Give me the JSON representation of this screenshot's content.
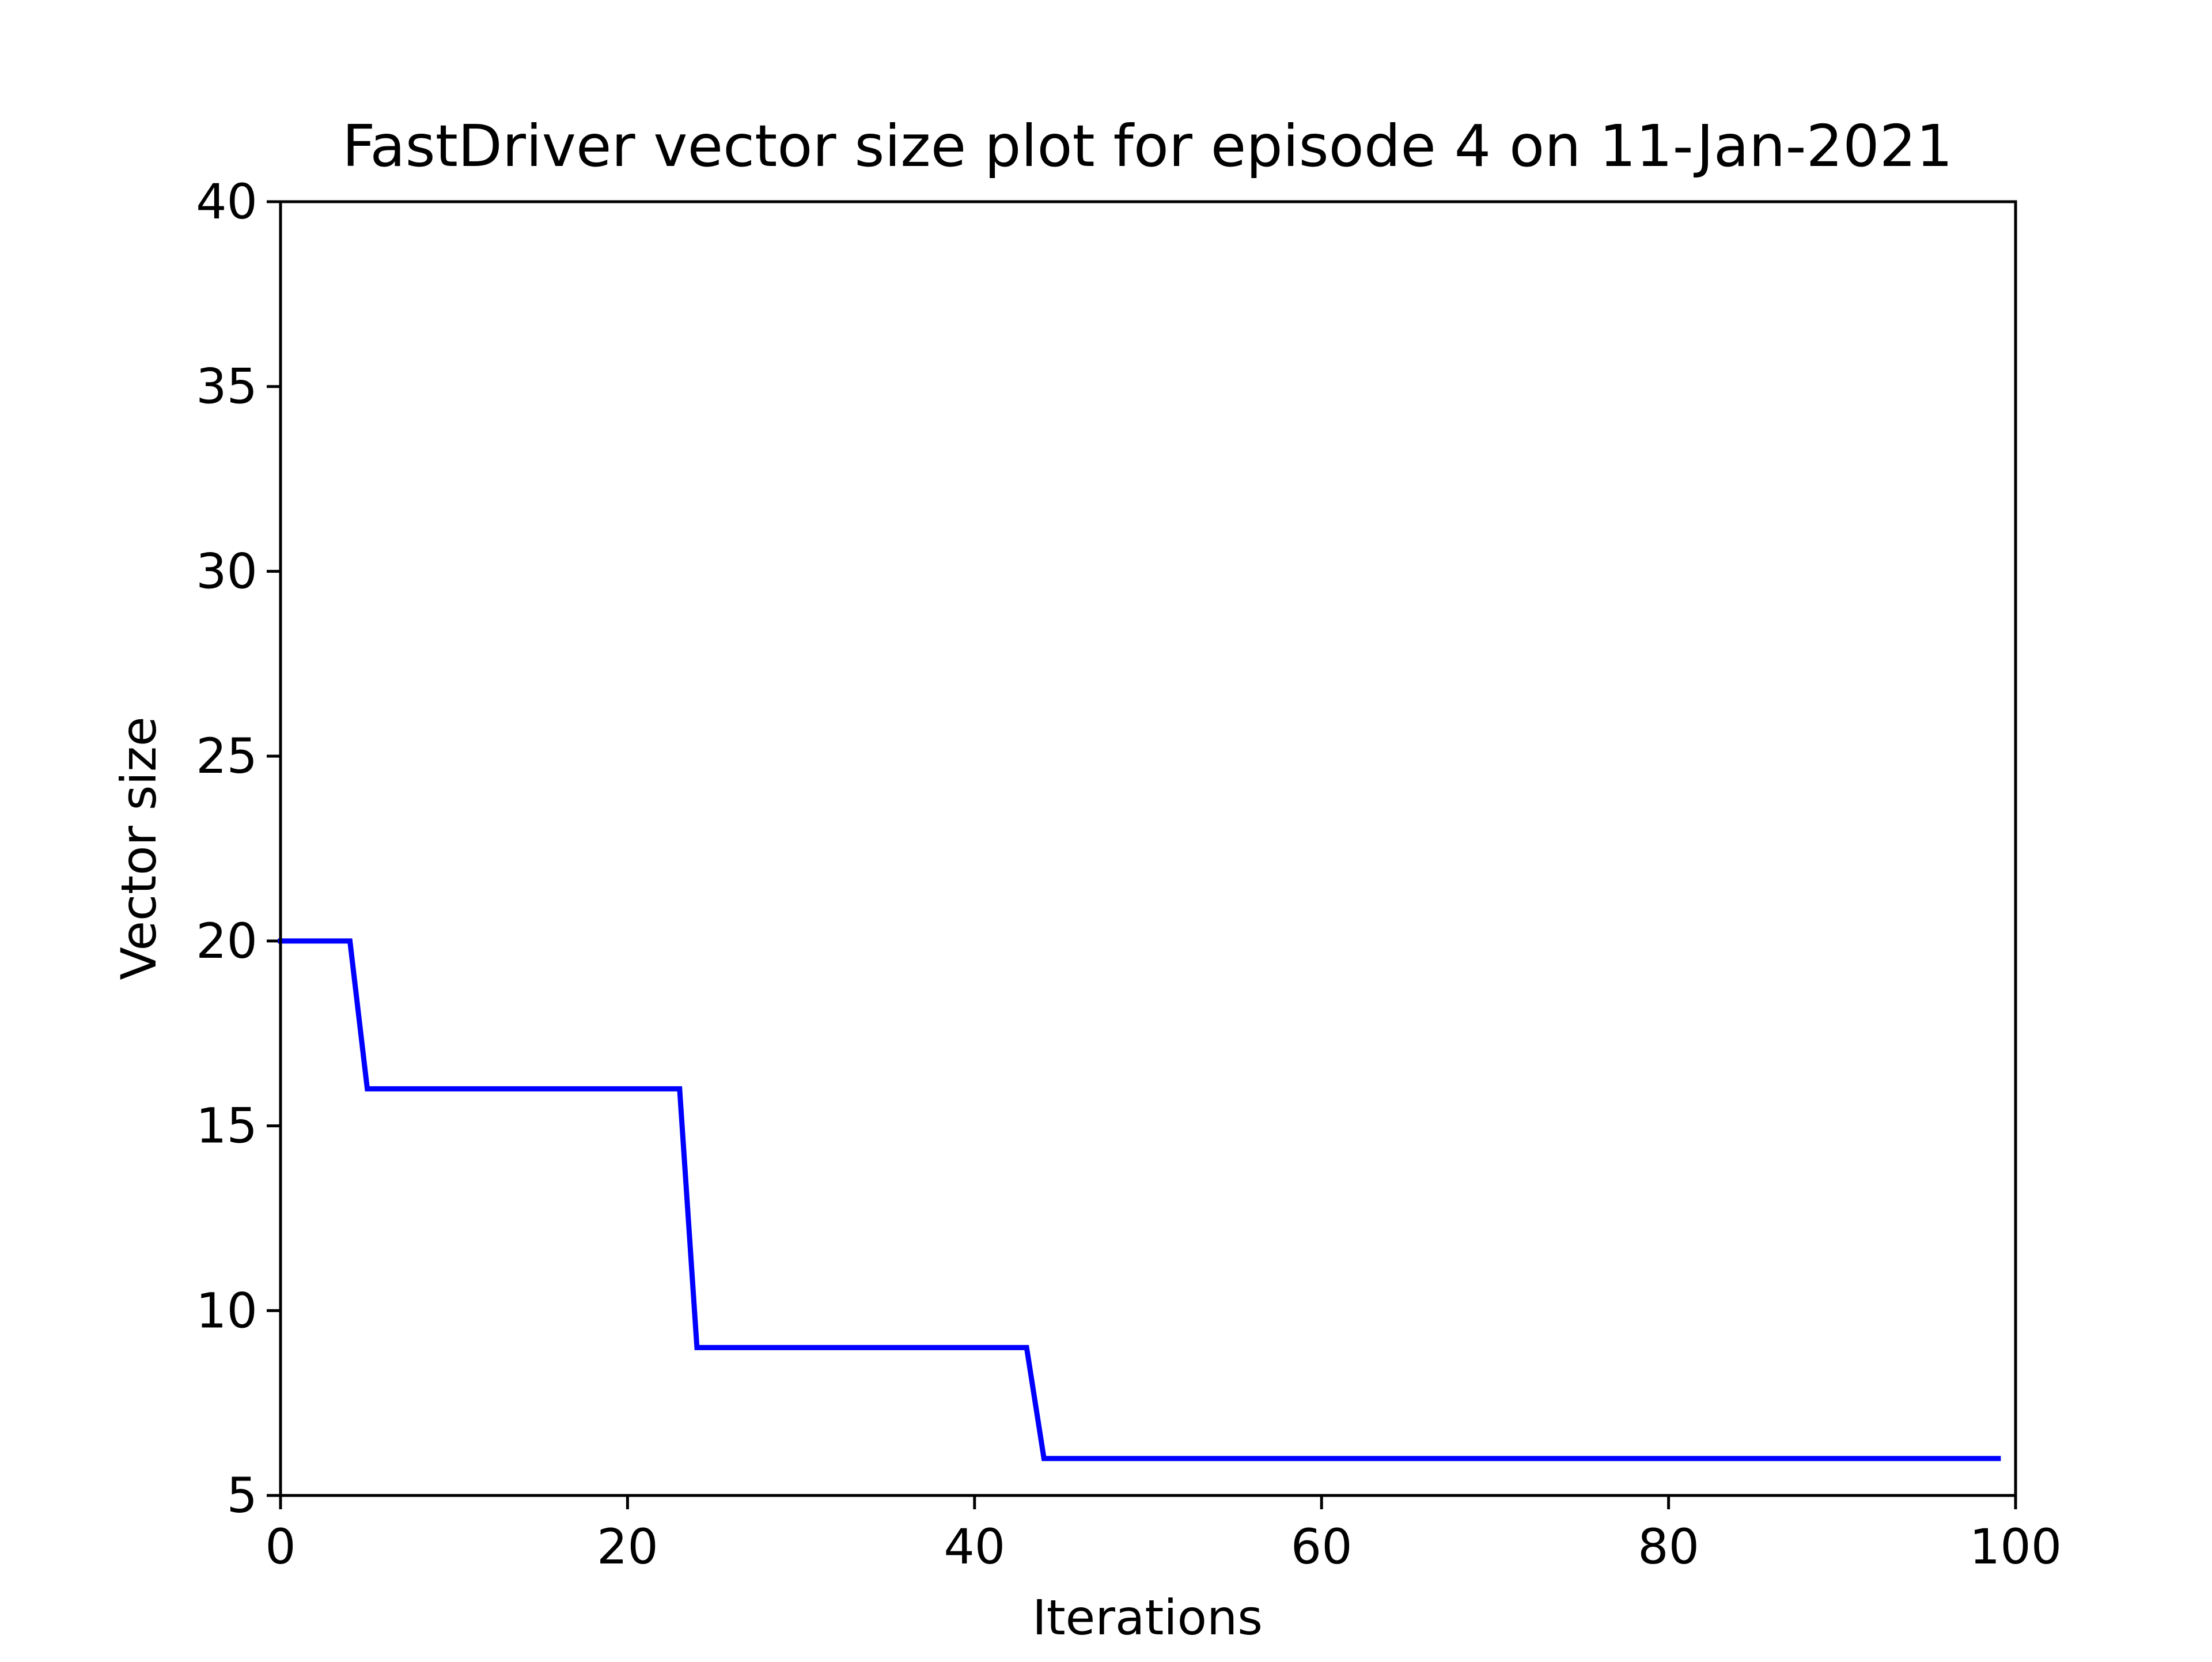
{
  "chart_data": {
    "type": "line",
    "title": "FastDriver vector size plot for episode 4 on 11-Jan-2021",
    "xlabel": "Iterations",
    "ylabel": "Vector size",
    "xlim": [
      0,
      100
    ],
    "ylim": [
      5,
      40
    ],
    "xticks": [
      0,
      20,
      40,
      60,
      80,
      100
    ],
    "xtick_labels": [
      "0",
      "20",
      "40",
      "60",
      "80",
      "100"
    ],
    "yticks": [
      5,
      10,
      15,
      20,
      25,
      30,
      35,
      40
    ],
    "ytick_labels": [
      "5",
      "10",
      "15",
      "20",
      "25",
      "30",
      "35",
      "40"
    ],
    "grid": false,
    "series": [
      {
        "color": "#0000ff",
        "x": [
          0,
          4,
          5,
          23,
          24,
          43,
          44,
          99
        ],
        "y": [
          20,
          20,
          16,
          16,
          9,
          9,
          6,
          6
        ]
      }
    ]
  }
}
